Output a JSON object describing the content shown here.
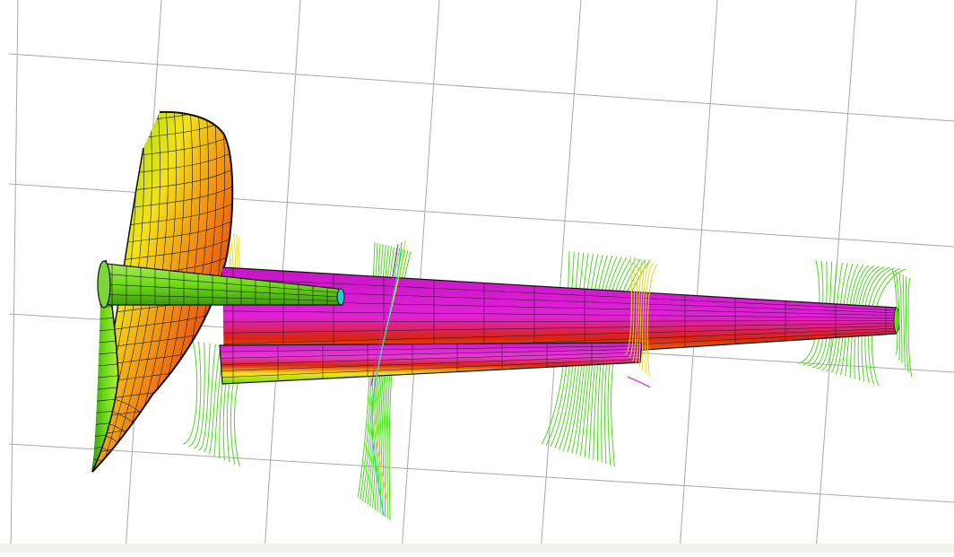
{
  "scene": {
    "type": "3d-cfd-visualization",
    "description_visible_text": "",
    "colors": {
      "background": "#ffffff",
      "grid": "#a9a9a9",
      "mesh": "#000000",
      "surface_magenta": "#d21ad2",
      "surface_red": "#d8250e",
      "surface_orange": "#f07a12",
      "surface_yellow": "#f2e21c",
      "surface_green": "#6fdc18",
      "streamline_green": "#4fd620",
      "streamline_yellow": "#e6d928",
      "streamline_cyan": "#1fd0c8"
    },
    "objects": [
      {
        "name": "fin-shell",
        "kind": "curved-surface"
      },
      {
        "name": "main-boom",
        "kind": "tapered-tube"
      },
      {
        "name": "lower-boom",
        "kind": "tapered-tube"
      },
      {
        "name": "upper-rod",
        "kind": "tapered-tube"
      },
      {
        "name": "streamline-plane",
        "kind": "streamlines",
        "count": 5
      }
    ]
  }
}
